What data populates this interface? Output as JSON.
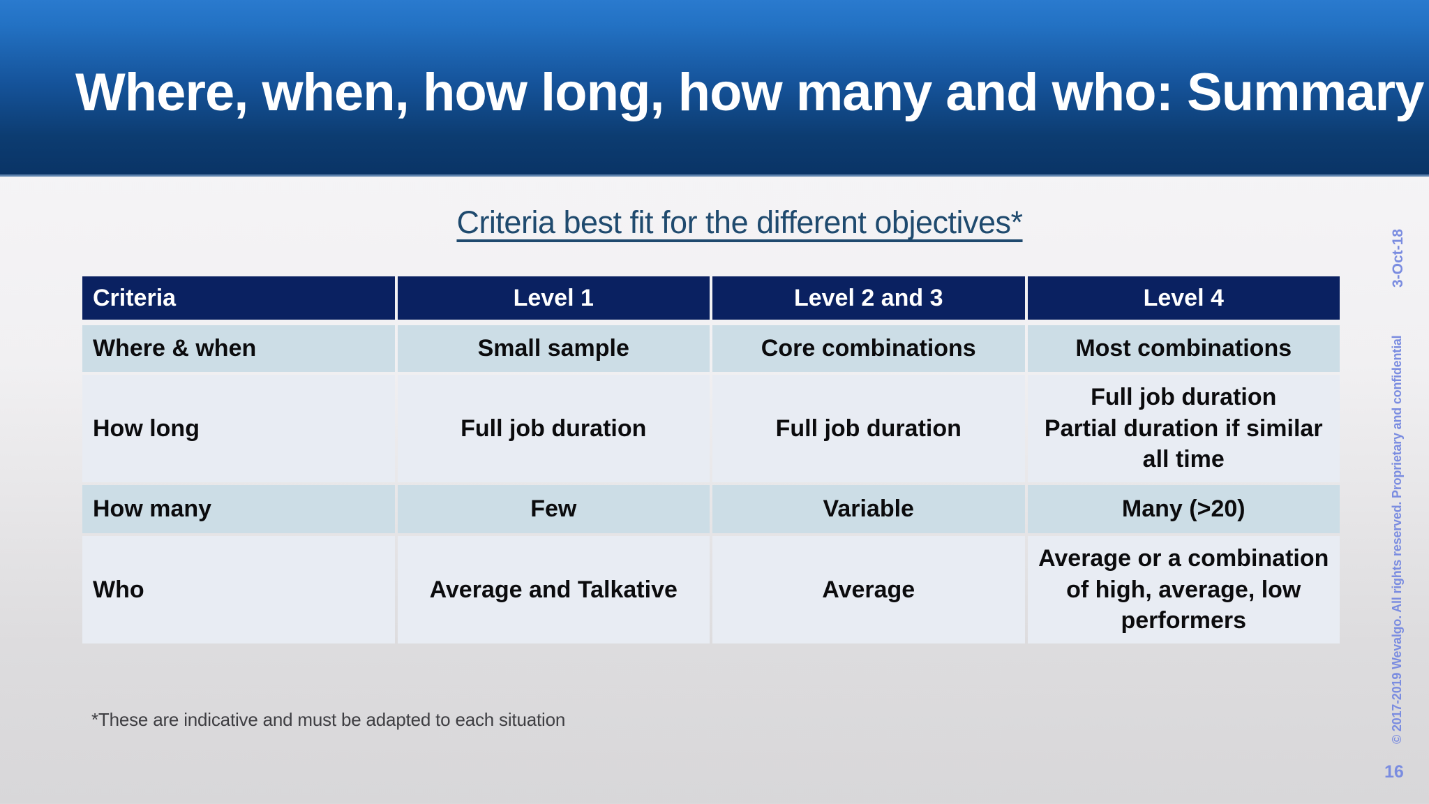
{
  "slide": {
    "title": "Where, when, how long, how many and who: Summary",
    "subtitle": "Criteria best fit for the different objectives*",
    "footnote": "*These are indicative and must be adapted to each situation",
    "date": "3-Oct-18",
    "copyright": "© 2017-2019 Wevalgo.  All rights reserved. Proprietary and confidential",
    "page_number": "16"
  },
  "table": {
    "headers": [
      "Criteria",
      "Level 1",
      "Level 2 and 3",
      "Level 4"
    ],
    "rows": [
      {
        "criteria": "Where & when",
        "cells": [
          "Small sample",
          "Core combinations",
          "Most combinations"
        ]
      },
      {
        "criteria": "How long",
        "cells": [
          "Full job duration",
          "Full job duration",
          "Full job duration\nPartial duration if similar\nall time"
        ]
      },
      {
        "criteria": "How many",
        "cells": [
          "Few",
          "Variable",
          "Many (>20)"
        ]
      },
      {
        "criteria": "Who",
        "cells": [
          "Average and Talkative",
          "Average",
          "Average or a combination\nof high, average, low\nperformers"
        ]
      }
    ]
  },
  "colors": {
    "banner-top": "#2A7ACE",
    "banner-bottom": "#0A3466",
    "header-bg": "#0A2161",
    "row-a": "#CCDDE6",
    "row-b": "#E8ECF3",
    "subtitle-color": "#1F4A6E",
    "meta-color": "#7A8CE0"
  }
}
